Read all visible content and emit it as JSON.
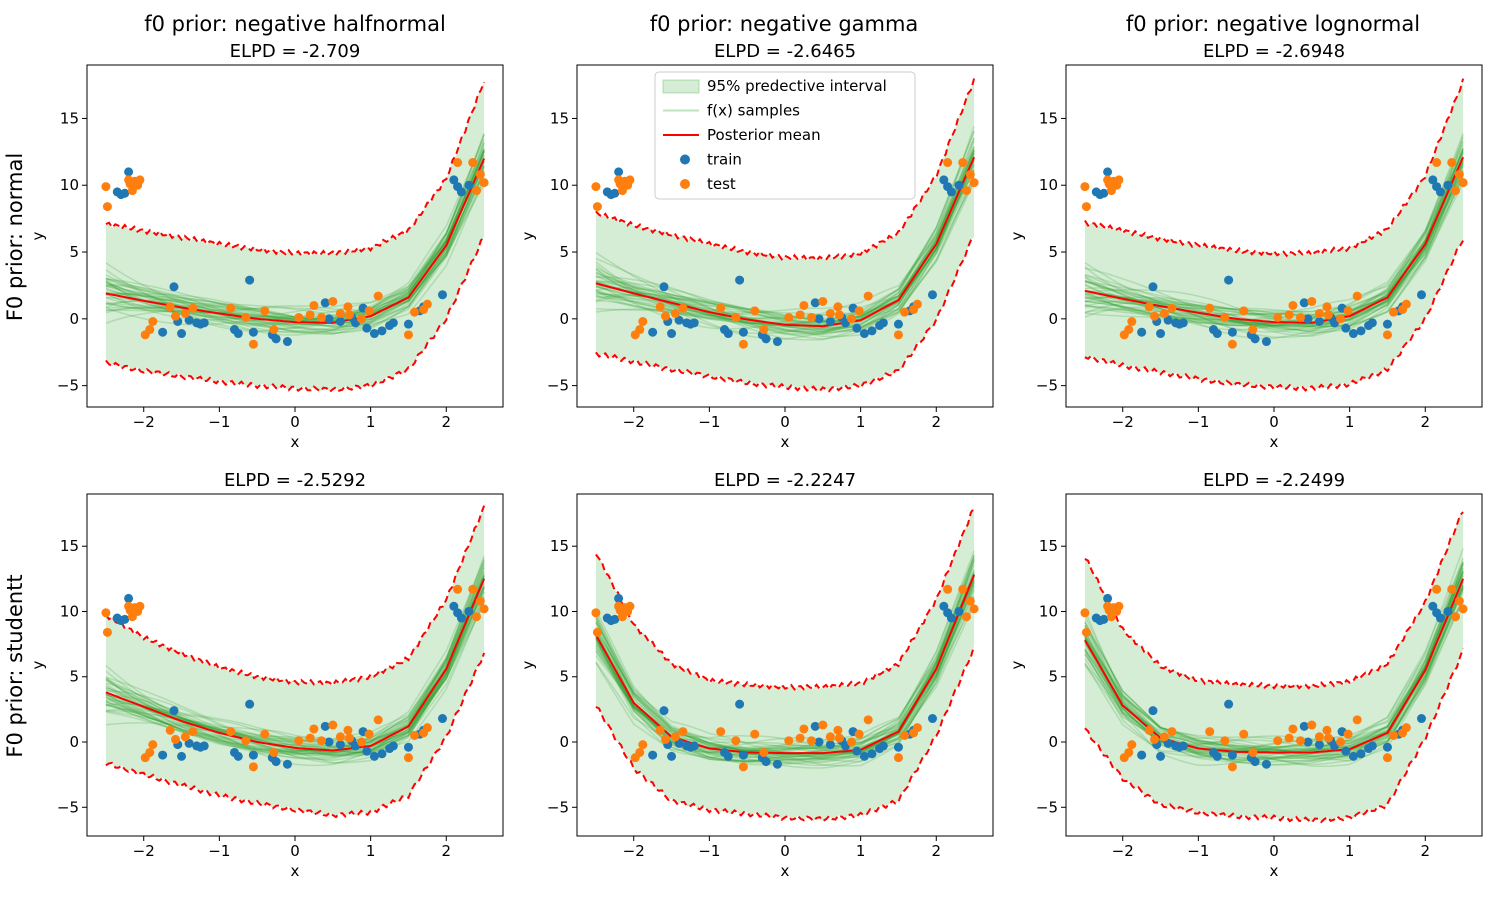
{
  "figure": {
    "col_titles": [
      "f0 prior: negative halfnormal",
      "f0 prior: negative gamma",
      "f0 prior: negative lognormal"
    ],
    "row_labels": [
      "F0 prior: normal",
      "F0 prior: studentt"
    ]
  },
  "legend": {
    "items": [
      {
        "label": "95% predective interval",
        "kind": "band"
      },
      {
        "label": "f(x) samples",
        "kind": "sample"
      },
      {
        "label": "Posterior mean",
        "kind": "mean"
      },
      {
        "label": "train",
        "kind": "train"
      },
      {
        "label": "test",
        "kind": "test"
      }
    ]
  },
  "colors": {
    "band": "#2ca02c",
    "sample": "#2ca02c",
    "mean": "#ff0000",
    "interval_edge": "#ff0000",
    "train": "#1f77b4",
    "test": "#ff7f0e"
  },
  "chart_data": [
    {
      "type": "line",
      "row": 0,
      "col": 0,
      "title": "ELPD = -2.709",
      "xlabel": "x",
      "ylabel": "y",
      "xlim": [
        -2.75,
        2.75
      ],
      "ylim": [
        -6.6,
        19
      ],
      "xticks": [
        -2,
        -1,
        0,
        1,
        2
      ],
      "yticks": [
        -5,
        0,
        5,
        10,
        15
      ],
      "mean": {
        "x": [
          -2.5,
          -2.0,
          -1.5,
          -1.0,
          -0.5,
          0.0,
          0.5,
          1.0,
          1.5,
          2.0,
          2.5
        ],
        "y": [
          1.9,
          1.35,
          0.85,
          0.4,
          0.0,
          -0.25,
          -0.3,
          0.2,
          1.6,
          5.5,
          12.0
        ]
      },
      "band": {
        "x": [
          -2.5,
          -2.0,
          -1.5,
          -1.0,
          -0.5,
          0.0,
          0.5,
          1.0,
          1.5,
          2.0,
          2.5
        ],
        "lower": [
          -3.3,
          -3.9,
          -4.3,
          -4.7,
          -5.0,
          -5.2,
          -5.3,
          -5.0,
          -3.8,
          0.0,
          6.2
        ],
        "upper": [
          7.1,
          6.6,
          6.1,
          5.6,
          5.2,
          4.9,
          4.9,
          5.3,
          6.6,
          10.5,
          17.8
        ]
      }
    },
    {
      "type": "line",
      "row": 0,
      "col": 1,
      "title": "ELPD = -2.6465",
      "xlabel": "x",
      "ylabel": "y",
      "xlim": [
        -2.75,
        2.75
      ],
      "ylim": [
        -6.6,
        19
      ],
      "xticks": [
        -2,
        -1,
        0,
        1,
        2
      ],
      "yticks": [
        -5,
        0,
        5,
        10,
        15
      ],
      "mean": {
        "x": [
          -2.5,
          -2.0,
          -1.5,
          -1.0,
          -0.5,
          0.0,
          0.5,
          1.0,
          1.5,
          2.0,
          2.5
        ],
        "y": [
          2.65,
          1.9,
          1.2,
          0.5,
          -0.05,
          -0.45,
          -0.55,
          -0.1,
          1.4,
          5.6,
          12.1
        ]
      },
      "band": {
        "x": [
          -2.5,
          -2.0,
          -1.5,
          -1.0,
          -0.5,
          0.0,
          0.5,
          1.0,
          1.5,
          2.0,
          2.5
        ],
        "lower": [
          -2.6,
          -3.2,
          -3.8,
          -4.3,
          -4.8,
          -5.1,
          -5.3,
          -5.0,
          -3.9,
          -0.1,
          6.3
        ],
        "upper": [
          7.9,
          7.0,
          6.3,
          5.6,
          5.0,
          4.6,
          4.5,
          4.9,
          6.4,
          10.7,
          17.9
        ]
      }
    },
    {
      "type": "line",
      "row": 0,
      "col": 2,
      "title": "ELPD = -2.6948",
      "xlabel": "x",
      "ylabel": "y",
      "xlim": [
        -2.75,
        2.75
      ],
      "ylim": [
        -6.6,
        19
      ],
      "xticks": [
        -2,
        -1,
        0,
        1,
        2
      ],
      "yticks": [
        -5,
        0,
        5,
        10,
        15
      ],
      "mean": {
        "x": [
          -2.5,
          -2.0,
          -1.5,
          -1.0,
          -0.5,
          0.0,
          0.5,
          1.0,
          1.5,
          2.0,
          2.5
        ],
        "y": [
          2.1,
          1.5,
          0.95,
          0.45,
          0.0,
          -0.25,
          -0.3,
          0.2,
          1.6,
          5.6,
          12.1
        ]
      },
      "band": {
        "x": [
          -2.5,
          -2.0,
          -1.5,
          -1.0,
          -0.5,
          0.0,
          0.5,
          1.0,
          1.5,
          2.0,
          2.5
        ],
        "lower": [
          -2.8,
          -3.5,
          -4.0,
          -4.5,
          -4.9,
          -5.1,
          -5.2,
          -4.9,
          -3.8,
          0.0,
          6.0
        ],
        "upper": [
          7.2,
          6.6,
          6.0,
          5.5,
          5.1,
          4.9,
          4.9,
          5.3,
          6.7,
          10.7,
          17.8
        ]
      }
    },
    {
      "type": "line",
      "row": 1,
      "col": 0,
      "title": "ELPD = -2.5292",
      "xlabel": "x",
      "ylabel": "y",
      "xlim": [
        -2.75,
        2.75
      ],
      "ylim": [
        -7.2,
        19
      ],
      "xticks": [
        -2,
        -1,
        0,
        1,
        2
      ],
      "yticks": [
        -5,
        0,
        5,
        10,
        15
      ],
      "mean": {
        "x": [
          -2.5,
          -2.0,
          -1.5,
          -1.0,
          -0.5,
          0.0,
          0.5,
          1.0,
          1.5,
          2.0,
          2.5
        ],
        "y": [
          3.8,
          2.7,
          1.6,
          0.7,
          0.0,
          -0.45,
          -0.65,
          -0.3,
          1.2,
          5.6,
          12.5
        ]
      },
      "band": {
        "x": [
          -2.5,
          -2.0,
          -1.5,
          -1.0,
          -0.5,
          0.0,
          0.5,
          1.0,
          1.5,
          2.0,
          2.5
        ],
        "lower": [
          -1.6,
          -2.5,
          -3.3,
          -4.1,
          -4.7,
          -5.2,
          -5.6,
          -5.4,
          -4.1,
          0.4,
          6.8
        ],
        "upper": [
          9.7,
          8.0,
          6.8,
          5.7,
          5.0,
          4.6,
          4.5,
          5.0,
          6.4,
          10.9,
          18.0
        ]
      }
    },
    {
      "type": "line",
      "row": 1,
      "col": 1,
      "title": "ELPD = -2.2247",
      "xlabel": "x",
      "ylabel": "y",
      "xlim": [
        -2.75,
        2.75
      ],
      "ylim": [
        -7.2,
        19
      ],
      "xticks": [
        -2,
        -1,
        0,
        1,
        2
      ],
      "yticks": [
        -5,
        0,
        5,
        10,
        15
      ],
      "mean": {
        "x": [
          -2.5,
          -2.0,
          -1.5,
          -1.0,
          -0.5,
          0.0,
          0.5,
          1.0,
          1.5,
          2.0,
          2.5
        ],
        "y": [
          8.2,
          3.0,
          0.4,
          -0.5,
          -0.8,
          -0.85,
          -0.85,
          -0.6,
          0.8,
          5.6,
          12.8
        ]
      },
      "band": {
        "x": [
          -2.5,
          -2.0,
          -1.5,
          -1.0,
          -0.5,
          0.0,
          0.5,
          1.0,
          1.5,
          2.0,
          2.5
        ],
        "lower": [
          2.8,
          -2.0,
          -4.5,
          -5.2,
          -5.5,
          -5.8,
          -5.9,
          -5.6,
          -4.5,
          0.5,
          7.2
        ],
        "upper": [
          14.5,
          9.0,
          6.0,
          4.7,
          4.4,
          4.2,
          4.2,
          4.5,
          6.0,
          10.9,
          18.0
        ]
      }
    },
    {
      "type": "line",
      "row": 1,
      "col": 2,
      "title": "ELPD = -2.2499",
      "xlabel": "x",
      "ylabel": "y",
      "xlim": [
        -2.75,
        2.75
      ],
      "ylim": [
        -7.2,
        19
      ],
      "xticks": [
        -2,
        -1,
        0,
        1,
        2
      ],
      "yticks": [
        -5,
        0,
        5,
        10,
        15
      ],
      "mean": {
        "x": [
          -2.5,
          -2.0,
          -1.5,
          -1.0,
          -0.5,
          0.0,
          0.5,
          1.0,
          1.5,
          2.0,
          2.5
        ],
        "y": [
          7.8,
          2.8,
          0.3,
          -0.5,
          -0.75,
          -0.8,
          -0.8,
          -0.55,
          0.7,
          5.5,
          12.5
        ]
      },
      "band": {
        "x": [
          -2.5,
          -2.0,
          -1.5,
          -1.0,
          -0.5,
          0.0,
          0.5,
          1.0,
          1.5,
          2.0,
          2.5
        ],
        "lower": [
          1.0,
          -2.8,
          -4.8,
          -5.4,
          -5.7,
          -5.8,
          -6.0,
          -5.8,
          -4.8,
          0.3,
          7.0
        ],
        "upper": [
          14.2,
          8.6,
          5.8,
          4.7,
          4.4,
          4.3,
          4.3,
          4.6,
          6.0,
          10.7,
          17.8
        ]
      }
    }
  ],
  "scatter": {
    "train": {
      "x": [
        -2.35,
        -2.3,
        -2.25,
        -2.2,
        -2.15,
        -1.75,
        -1.6,
        -1.55,
        -1.5,
        -1.4,
        -1.3,
        -1.25,
        -1.2,
        -0.8,
        -0.75,
        -0.6,
        -0.55,
        -0.3,
        -0.25,
        -0.1,
        0.4,
        0.45,
        0.6,
        0.75,
        0.8,
        0.9,
        0.95,
        1.05,
        1.15,
        1.25,
        1.3,
        1.5,
        1.65,
        1.7,
        1.95,
        2.1,
        2.15,
        2.2,
        2.3
      ],
      "y": [
        9.5,
        9.3,
        9.4,
        11.0,
        10.0,
        -1.0,
        2.4,
        -0.2,
        -1.1,
        -0.1,
        -0.3,
        -0.4,
        -0.3,
        -0.8,
        -1.1,
        2.9,
        -1.0,
        -1.2,
        -1.5,
        -1.7,
        1.2,
        0.0,
        -0.2,
        0.1,
        -0.3,
        0.8,
        -0.7,
        -1.1,
        -0.9,
        -0.5,
        -0.3,
        -0.4,
        0.6,
        0.9,
        1.8,
        10.4,
        9.9,
        9.5,
        10.0
      ]
    },
    "test": {
      "x": [
        -2.5,
        -2.48,
        -2.2,
        -2.18,
        -2.15,
        -2.12,
        -2.08,
        -2.05,
        -1.98,
        -1.92,
        -1.88,
        -1.65,
        -1.58,
        -1.45,
        -1.35,
        -0.85,
        -0.65,
        -0.55,
        -0.4,
        -0.28,
        0.05,
        0.2,
        0.25,
        0.35,
        0.5,
        0.6,
        0.7,
        0.72,
        0.88,
        0.98,
        1.1,
        1.5,
        1.58,
        1.7,
        1.75,
        2.15,
        2.35,
        2.4,
        2.45,
        2.5
      ],
      "y": [
        9.9,
        8.4,
        10.4,
        10.1,
        9.6,
        10.3,
        10.0,
        10.4,
        -1.2,
        -0.8,
        -0.2,
        0.9,
        0.2,
        0.4,
        0.8,
        0.8,
        0.1,
        -1.9,
        0.6,
        -0.8,
        0.1,
        0.3,
        1.0,
        0.1,
        1.3,
        0.4,
        0.9,
        0.3,
        0.0,
        0.6,
        1.7,
        -1.2,
        0.5,
        0.7,
        1.1,
        11.7,
        11.7,
        9.6,
        10.8,
        10.2
      ]
    }
  }
}
